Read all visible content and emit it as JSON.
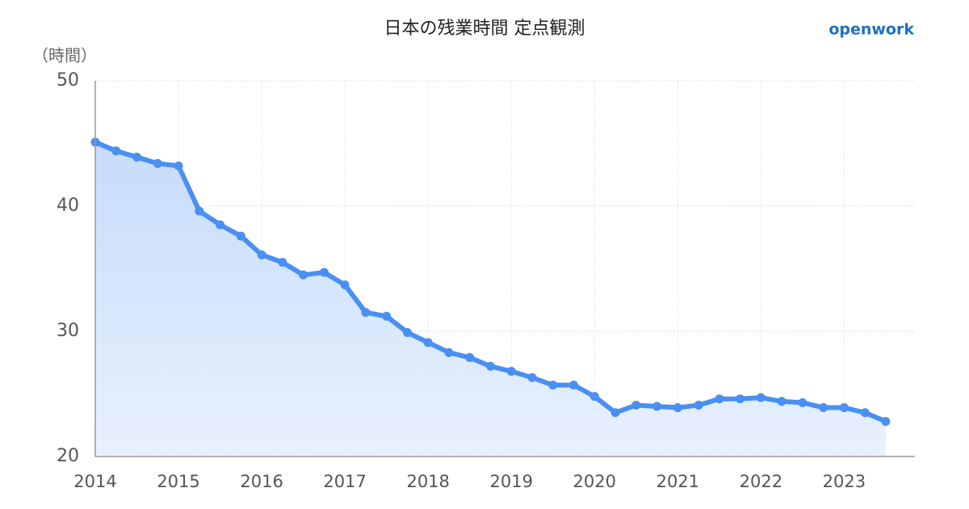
{
  "chart_data": {
    "type": "line",
    "title": "日本の残業時間 定点観測",
    "brand": "openwork",
    "y_label": "（時間）",
    "x": [
      2014,
      2014.25,
      2014.5,
      2014.75,
      2015,
      2015.25,
      2015.5,
      2015.75,
      2016,
      2016.25,
      2016.5,
      2016.75,
      2017,
      2017.25,
      2017.5,
      2017.75,
      2018,
      2018.25,
      2018.5,
      2018.75,
      2019,
      2019.25,
      2019.5,
      2019.75,
      2020,
      2020.25,
      2020.5,
      2020.75,
      2021,
      2021.25,
      2021.5,
      2021.75,
      2022,
      2022.25,
      2022.5,
      2022.75,
      2023,
      2023.25,
      2023.5
    ],
    "values": [
      45.1,
      44.4,
      43.9,
      43.4,
      43.2,
      39.6,
      38.5,
      37.6,
      36.1,
      35.5,
      34.5,
      34.7,
      33.7,
      31.5,
      31.2,
      29.9,
      29.1,
      28.3,
      27.9,
      27.2,
      26.8,
      26.3,
      25.7,
      25.7,
      24.8,
      23.5,
      24.1,
      24.0,
      23.9,
      24.1,
      24.6,
      24.6,
      24.7,
      24.4,
      24.3,
      23.9,
      23.9,
      23.5,
      22.8
    ],
    "color": "#4a8ff2",
    "xlim": [
      2014,
      2023.85
    ],
    "xticks": [
      2014,
      2015,
      2016,
      2017,
      2018,
      2019,
      2020,
      2021,
      2022,
      2023
    ],
    "ylim": [
      20,
      50
    ],
    "yticks": [
      20,
      30,
      40,
      50
    ],
    "grid": true
  }
}
